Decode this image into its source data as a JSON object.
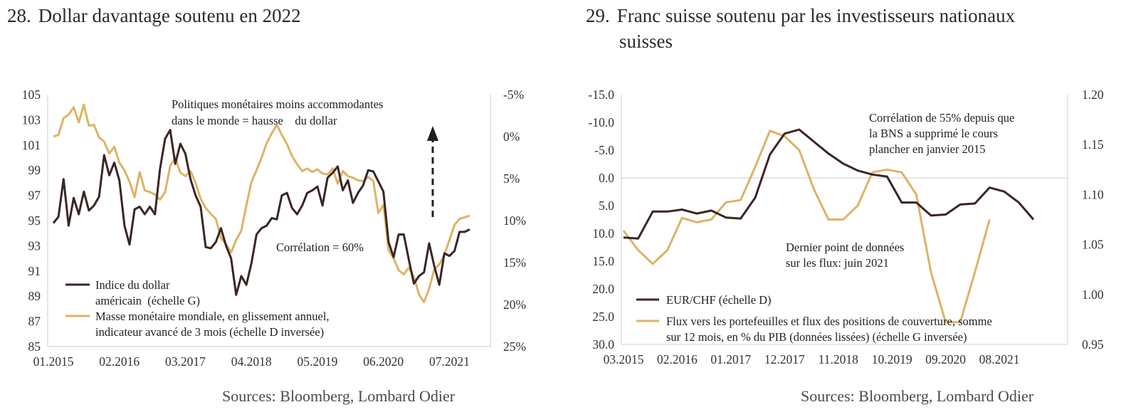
{
  "colors": {
    "dark": "#3a2624",
    "gold": "#ddb366",
    "axis": "#cccccc",
    "arrow": "#231f1f"
  },
  "panel1": {
    "number": "28.",
    "title": "Dollar davantage soutenu en 2022",
    "source": "Sources: Bloomberg, Lombard Odier",
    "annotation_top": [
      "Politiques monétaires moins accommodantes",
      "dans le monde = hausse    du dollar"
    ],
    "annotation_corr": "Corrélation = 60%",
    "legend": [
      {
        "lines": [
          "Indice du dollar",
          "américain  (échelle G)"
        ]
      },
      {
        "lines": [
          "Masse monétaire mondiale, en glissement annuel,",
          "indicateur avancé de 3 mois (échelle D inversée)"
        ]
      }
    ],
    "y_left_ticks": [
      "105",
      "103",
      "101",
      "99",
      "97",
      "95",
      "93",
      "91",
      "89",
      "87",
      "85"
    ],
    "y_right_ticks": [
      "-5%",
      "0%",
      "5%",
      "10%",
      "15%",
      "20%",
      "25%"
    ],
    "x_ticks": [
      "01.2015",
      "02.2016",
      "03.2017",
      "04.2018",
      "05.2019",
      "06.2020",
      "07.2021"
    ]
  },
  "panel2": {
    "number": "29.",
    "title": "Franc suisse soutenu par les investisseurs nationaux suisses",
    "title_lines": [
      "Franc suisse soutenu par les investisseurs nationaux",
      "suisses"
    ],
    "source": "Sources: Bloomberg, Lombard Odier",
    "annotation_top": [
      "Corrélation de 55% depuis que",
      "la BNS a supprimé le cours",
      "plancher en janvier 2015"
    ],
    "annotation_mid": [
      "Dernier point de données",
      "sur les flux: juin 2021"
    ],
    "legend": [
      {
        "lines": [
          "EUR/CHF (échelle D)"
        ]
      },
      {
        "lines": [
          "Flux vers les portefeuilles et flux des positions de couverture, somme",
          "sur 12 mois, en % du PIB (données lissées) (échelle G inversée)"
        ]
      }
    ],
    "y_left_ticks": [
      "-15.0",
      "-10.0",
      "-5.0",
      "0.0",
      "5.0",
      "10.0",
      "15.0",
      "20.0",
      "25.0",
      "30.0"
    ],
    "y_right_ticks": [
      "1.20",
      "1.15",
      "1.10",
      "1.05",
      "1.00",
      "0.95"
    ],
    "x_ticks": [
      "03.2015",
      "02.2016",
      "01.2017",
      "12.2017",
      "11.2018",
      "10.2019",
      "09.2020",
      "08.2021"
    ]
  },
  "chart_data": [
    {
      "type": "line",
      "title": "Dollar davantage soutenu en 2022",
      "x_start": "2015-01",
      "x_step_months": 1,
      "ylim_left": [
        85,
        105
      ],
      "ylim_right_inverted": [
        -5,
        25
      ],
      "series": [
        {
          "name": "Indice du dollar américain (échelle G)",
          "axis": "left",
          "values": [
            94.8,
            95.3,
            98.3,
            94.6,
            96.8,
            95.5,
            97.3,
            95.8,
            96.2,
            96.9,
            100.2,
            98.6,
            99.6,
            98.2,
            94.6,
            93.1,
            95.9,
            96.1,
            95.5,
            96.1,
            95.5,
            99.1,
            101.5,
            102.2,
            99.5,
            101.1,
            100.3,
            98.3,
            97.0,
            96.1,
            92.9,
            92.8,
            93.3,
            94.4,
            93.0,
            92.0,
            89.1,
            90.6,
            89.9,
            91.6,
            93.9,
            94.4,
            94.6,
            95.2,
            95.1,
            97.0,
            97.2,
            96.0,
            95.5,
            96.2,
            97.2,
            97.4,
            97.7,
            96.2,
            98.4,
            98.8,
            99.3,
            97.4,
            98.2,
            96.4,
            97.2,
            97.8,
            99.0,
            98.9,
            98.1,
            97.3,
            93.3,
            92.1,
            93.9,
            93.9,
            91.9,
            90.0,
            90.6,
            90.9,
            93.2,
            91.4,
            89.9,
            92.4,
            92.2,
            92.6,
            94.1,
            94.1,
            94.3
          ]
        },
        {
          "name": "Masse monétaire mondiale, en glissement annuel, indicateur avancé de 3 mois (échelle D inversée)",
          "axis": "right",
          "values": [
            0.0,
            -0.2,
            -2.2,
            -2.6,
            -3.5,
            -1.7,
            -3.8,
            -1.3,
            -1.4,
            0.1,
            0.6,
            2.0,
            1.2,
            3.1,
            4.0,
            5.4,
            7.2,
            4.2,
            6.4,
            6.6,
            6.9,
            7.5,
            6.6,
            3.5,
            2.5,
            4.3,
            4.7,
            4.1,
            5.5,
            7.4,
            8.5,
            9.2,
            9.8,
            12.1,
            12.8,
            13.8,
            12.3,
            11.2,
            8.2,
            5.4,
            4.0,
            2.5,
            0.8,
            -0.4,
            -1.4,
            -0.2,
            0.9,
            2.3,
            3.3,
            4.1,
            3.8,
            4.2,
            3.9,
            4.4,
            4.5,
            3.8,
            5.6,
            4.1,
            4.7,
            4.9,
            5.2,
            5.3,
            4.8,
            5.3,
            9.1,
            8.1,
            13.5,
            14.5,
            15.9,
            16.4,
            15.6,
            16.7,
            18.8,
            19.7,
            18.1,
            15.8,
            15.2,
            14.1,
            12.3,
            10.5,
            9.8,
            9.6,
            9.4
          ]
        }
      ]
    },
    {
      "type": "line",
      "title": "Franc suisse soutenu par les investisseurs nationaux suisses",
      "x_start": "2015-03",
      "x_step_months": 3,
      "ylim_left_inverted": [
        -15,
        30
      ],
      "ylim_right": [
        0.95,
        1.2
      ],
      "series": [
        {
          "name": "EUR/CHF (échelle D)",
          "axis": "right",
          "values": [
            1.057,
            1.056,
            1.083,
            1.083,
            1.085,
            1.081,
            1.084,
            1.077,
            1.076,
            1.097,
            1.14,
            1.161,
            1.165,
            1.153,
            1.141,
            1.131,
            1.124,
            1.12,
            1.118,
            1.092,
            1.092,
            1.079,
            1.08,
            1.09,
            1.091,
            1.107,
            1.103,
            1.092,
            1.075
          ]
        },
        {
          "name": "Flux vers les portefeuilles et flux des positions de couverture, somme sur 12 mois, en % du PIB (données lissées) (échelle G inversée)",
          "axis": "left",
          "values": [
            9.5,
            13.0,
            15.5,
            13.0,
            7.2,
            8.0,
            7.5,
            4.4,
            4.0,
            -2.0,
            -8.5,
            -7.5,
            -5.0,
            2.0,
            7.5,
            7.5,
            5.0,
            -1.0,
            -1.5,
            -1.0,
            3.0,
            17.0,
            26.0,
            26.0,
            17.0,
            7.5
          ]
        }
      ]
    }
  ]
}
